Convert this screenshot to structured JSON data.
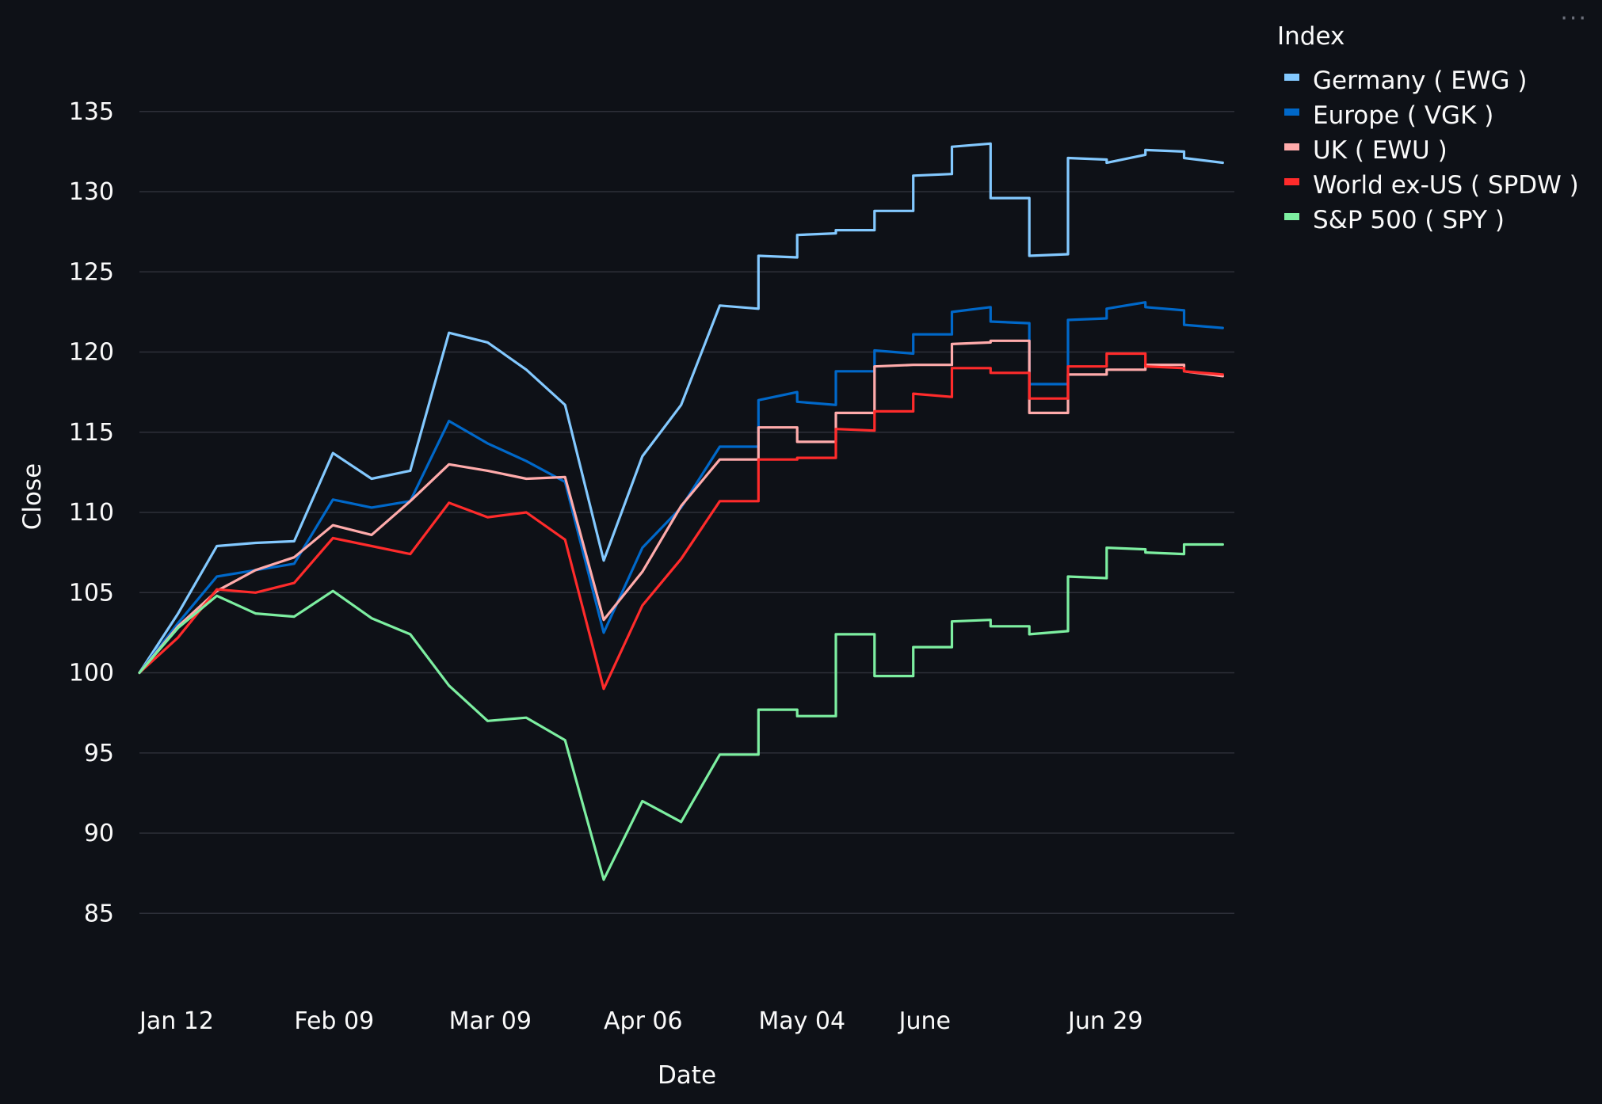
{
  "chart_data": {
    "type": "line",
    "title": "",
    "xlabel": "Date",
    "ylabel": "Close",
    "ylim": [
      82,
      138
    ],
    "yticks": [
      85,
      90,
      95,
      100,
      105,
      110,
      115,
      120,
      125,
      130,
      135
    ],
    "x_ticks": [
      {
        "label": "Jan 12",
        "week": 0
      },
      {
        "label": "Feb 09",
        "week": 4
      },
      {
        "label": "Mar 09",
        "week": 8
      },
      {
        "label": "Apr 06",
        "week": 12
      },
      {
        "label": "May 04",
        "week": 16
      },
      {
        "label": "June",
        "week": 20.3
      },
      {
        "label": "Jun 29",
        "week": 24
      }
    ],
    "xlim": [
      0,
      28.3
    ],
    "grid": true,
    "legend": {
      "title": "Index",
      "position": "top-right"
    },
    "series": [
      {
        "name": "Germany ( EWG )",
        "color": "#83c9ff",
        "points": [
          [
            0,
            100
          ],
          [
            1,
            103.7
          ],
          [
            2,
            107.9
          ],
          [
            3,
            108.1
          ],
          [
            4,
            108.2
          ],
          [
            5,
            113.7
          ],
          [
            6,
            112.1
          ],
          [
            7,
            112.6
          ],
          [
            8,
            121.2
          ],
          [
            9,
            120.6
          ],
          [
            10,
            118.9
          ],
          [
            11,
            116.7
          ],
          [
            12,
            107
          ],
          [
            13,
            113.5
          ],
          [
            14,
            116.7
          ],
          [
            15,
            122.9
          ],
          [
            16,
            122.7
          ],
          [
            16,
            126
          ],
          [
            17,
            125.9
          ],
          [
            17,
            127.3
          ],
          [
            18,
            127.4
          ],
          [
            18,
            127.6
          ],
          [
            19,
            127.6
          ],
          [
            19,
            128.8
          ],
          [
            20,
            128.8
          ],
          [
            20,
            131
          ],
          [
            21,
            131.1
          ],
          [
            21,
            132.8
          ],
          [
            22,
            133
          ],
          [
            22,
            129.6
          ],
          [
            23,
            129.6
          ],
          [
            23,
            126
          ],
          [
            24,
            126.1
          ],
          [
            24,
            132.1
          ],
          [
            25,
            132
          ],
          [
            25,
            131.8
          ],
          [
            26,
            132.3
          ],
          [
            26,
            132.6
          ],
          [
            27,
            132.5
          ],
          [
            27,
            132.1
          ],
          [
            28,
            131.8
          ]
        ]
      },
      {
        "name": "Europe ( VGK )",
        "color": "#0068c9",
        "points": [
          [
            0,
            100
          ],
          [
            1,
            103.1
          ],
          [
            2,
            106
          ],
          [
            3,
            106.4
          ],
          [
            4,
            106.8
          ],
          [
            5,
            110.8
          ],
          [
            6,
            110.3
          ],
          [
            7,
            110.7
          ],
          [
            8,
            115.7
          ],
          [
            9,
            114.3
          ],
          [
            10,
            113.2
          ],
          [
            11,
            111.9
          ],
          [
            12,
            102.5
          ],
          [
            13,
            107.8
          ],
          [
            14,
            110.3
          ],
          [
            15,
            114.1
          ],
          [
            16,
            114.1
          ],
          [
            16,
            117
          ],
          [
            17,
            117.5
          ],
          [
            17,
            116.9
          ],
          [
            18,
            116.7
          ],
          [
            18,
            118.8
          ],
          [
            19,
            118.8
          ],
          [
            19,
            120.1
          ],
          [
            20,
            119.9
          ],
          [
            20,
            121.1
          ],
          [
            21,
            121.1
          ],
          [
            21,
            122.5
          ],
          [
            22,
            122.8
          ],
          [
            22,
            121.9
          ],
          [
            23,
            121.8
          ],
          [
            23,
            118
          ],
          [
            24,
            118
          ],
          [
            24,
            122
          ],
          [
            25,
            122.1
          ],
          [
            25,
            122.7
          ],
          [
            26,
            123.1
          ],
          [
            26,
            122.8
          ],
          [
            27,
            122.6
          ],
          [
            27,
            121.7
          ],
          [
            28,
            121.5
          ]
        ]
      },
      {
        "name": "UK ( EWU )",
        "color": "#ffabab",
        "points": [
          [
            0,
            100
          ],
          [
            1,
            102.9
          ],
          [
            2,
            105.1
          ],
          [
            3,
            106.4
          ],
          [
            4,
            107.2
          ],
          [
            5,
            109.2
          ],
          [
            6,
            108.6
          ],
          [
            7,
            110.7
          ],
          [
            8,
            113
          ],
          [
            9,
            112.6
          ],
          [
            10,
            112.1
          ],
          [
            11,
            112.2
          ],
          [
            12,
            103.3
          ],
          [
            13,
            106.3
          ],
          [
            14,
            110.4
          ],
          [
            15,
            113.3
          ],
          [
            16,
            113.3
          ],
          [
            16,
            115.3
          ],
          [
            17,
            115.3
          ],
          [
            17,
            114.4
          ],
          [
            18,
            114.4
          ],
          [
            18,
            116.2
          ],
          [
            19,
            116.2
          ],
          [
            19,
            119.1
          ],
          [
            20,
            119.2
          ],
          [
            20,
            119.2
          ],
          [
            21,
            119.2
          ],
          [
            21,
            120.5
          ],
          [
            22,
            120.6
          ],
          [
            22,
            120.7
          ],
          [
            23,
            120.7
          ],
          [
            23,
            116.2
          ],
          [
            24,
            116.2
          ],
          [
            24,
            118.6
          ],
          [
            25,
            118.6
          ],
          [
            25,
            118.9
          ],
          [
            26,
            118.9
          ],
          [
            26,
            119.2
          ],
          [
            27,
            119.2
          ],
          [
            27,
            118.8
          ],
          [
            28,
            118.5
          ]
        ]
      },
      {
        "name": "World ex-US ( SPDW )",
        "color": "#ff2b2b",
        "points": [
          [
            0,
            100
          ],
          [
            1,
            102.2
          ],
          [
            2,
            105.2
          ],
          [
            3,
            105
          ],
          [
            4,
            105.6
          ],
          [
            5,
            108.4
          ],
          [
            6,
            107.9
          ],
          [
            7,
            107.4
          ],
          [
            8,
            110.6
          ],
          [
            9,
            109.7
          ],
          [
            10,
            110
          ],
          [
            11,
            108.3
          ],
          [
            12,
            99
          ],
          [
            13,
            104.2
          ],
          [
            14,
            107.1
          ],
          [
            15,
            110.7
          ],
          [
            16,
            110.7
          ],
          [
            16,
            113.3
          ],
          [
            17,
            113.3
          ],
          [
            17,
            113.4
          ],
          [
            18,
            113.4
          ],
          [
            18,
            115.2
          ],
          [
            19,
            115.1
          ],
          [
            19,
            116.3
          ],
          [
            20,
            116.3
          ],
          [
            20,
            117.4
          ],
          [
            21,
            117.2
          ],
          [
            21,
            119
          ],
          [
            22,
            119
          ],
          [
            22,
            118.7
          ],
          [
            23,
            118.7
          ],
          [
            23,
            117.1
          ],
          [
            24,
            117.1
          ],
          [
            24,
            119.1
          ],
          [
            25,
            119.1
          ],
          [
            25,
            119.9
          ],
          [
            26,
            119.9
          ],
          [
            26,
            119.1
          ],
          [
            27,
            119
          ],
          [
            27,
            118.8
          ],
          [
            28,
            118.6
          ]
        ]
      },
      {
        "name": "S&P 500 ( SPY )",
        "color": "#7defa1",
        "points": [
          [
            0,
            100
          ],
          [
            1,
            102.8
          ],
          [
            2,
            104.8
          ],
          [
            3,
            103.7
          ],
          [
            4,
            103.5
          ],
          [
            5,
            105.1
          ],
          [
            6,
            103.4
          ],
          [
            7,
            102.4
          ],
          [
            8,
            99.2
          ],
          [
            9,
            97
          ],
          [
            10,
            97.2
          ],
          [
            11,
            95.8
          ],
          [
            12,
            87.1
          ],
          [
            13,
            92
          ],
          [
            14,
            90.7
          ],
          [
            15,
            94.9
          ],
          [
            16,
            94.9
          ],
          [
            16,
            97.7
          ],
          [
            17,
            97.7
          ],
          [
            17,
            97.3
          ],
          [
            18,
            97.3
          ],
          [
            18,
            102.4
          ],
          [
            19,
            102.4
          ],
          [
            19,
            99.8
          ],
          [
            20,
            99.8
          ],
          [
            20,
            101.6
          ],
          [
            21,
            101.6
          ],
          [
            21,
            103.2
          ],
          [
            22,
            103.3
          ],
          [
            22,
            102.9
          ],
          [
            23,
            102.9
          ],
          [
            23,
            102.4
          ],
          [
            24,
            102.6
          ],
          [
            24,
            106
          ],
          [
            25,
            105.9
          ],
          [
            25,
            107.8
          ],
          [
            26,
            107.7
          ],
          [
            26,
            107.5
          ],
          [
            27,
            107.4
          ],
          [
            27,
            108
          ],
          [
            28,
            108
          ]
        ]
      }
    ]
  },
  "ui": {
    "menu_glyph": "···"
  }
}
